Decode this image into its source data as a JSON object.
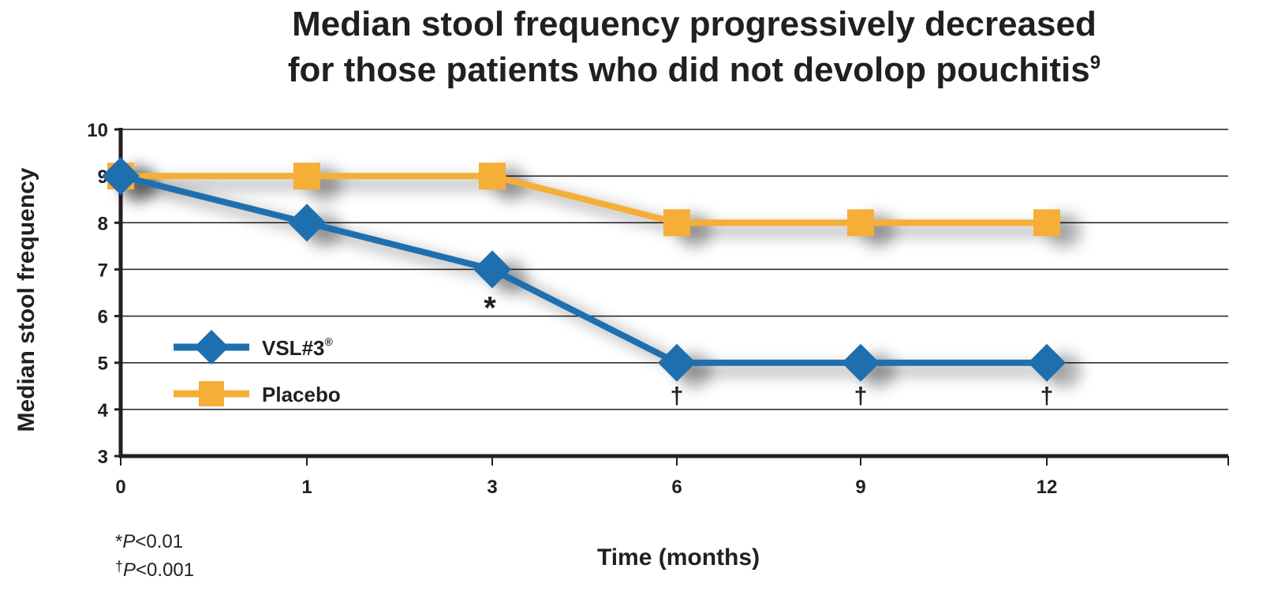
{
  "chart_data": {
    "type": "line",
    "title_line1": "Median stool frequency progressively decreased",
    "title_line2": "for those patients who did not devolop pouchitis",
    "title_superscript": "9",
    "xlabel": "Time (months)",
    "ylabel": "Median stool frequency",
    "x": [
      0,
      1,
      3,
      6,
      9,
      12
    ],
    "ylim": [
      3,
      10
    ],
    "yticks": [
      3,
      4,
      5,
      6,
      7,
      8,
      9,
      10
    ],
    "grid": true,
    "legend_position": "left",
    "series": [
      {
        "name": "VSL#3",
        "name_superscript": "®",
        "marker": "diamond",
        "color": "#1f6fae",
        "values": [
          9,
          8,
          7,
          5,
          5,
          5
        ]
      },
      {
        "name": "Placebo",
        "marker": "square",
        "color": "#f5ae37",
        "values": [
          9,
          9,
          9,
          8,
          8,
          8
        ]
      }
    ],
    "annotations": [
      {
        "text": "*",
        "x": 3,
        "series": "VSL#3"
      },
      {
        "text": "†",
        "x": 6,
        "series": "VSL#3"
      },
      {
        "text": "†",
        "x": 9,
        "series": "VSL#3"
      },
      {
        "text": "†",
        "x": 12,
        "series": "VSL#3"
      }
    ],
    "footnotes": [
      {
        "symbol": "*",
        "label": "P",
        "text": "<0.01"
      },
      {
        "symbol": "†",
        "label": "P",
        "text": "<0.001"
      }
    ]
  }
}
